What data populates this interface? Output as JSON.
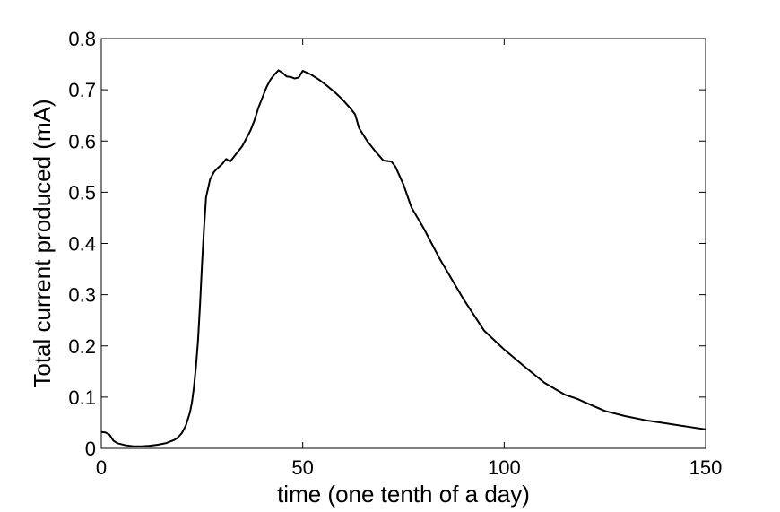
{
  "chart_data": {
    "type": "line",
    "title": "",
    "xlabel": "time (one tenth of a day)",
    "ylabel": "Total current produced (mA)",
    "xlim": [
      0,
      150
    ],
    "ylim": [
      0,
      0.8
    ],
    "x_ticks": [
      {
        "value": 0,
        "label": "0"
      },
      {
        "value": 50,
        "label": "50"
      },
      {
        "value": 100,
        "label": "100"
      },
      {
        "value": 150,
        "label": "150"
      }
    ],
    "y_ticks": [
      {
        "value": 0,
        "label": "0"
      },
      {
        "value": 0.1,
        "label": "0.1"
      },
      {
        "value": 0.2,
        "label": "0.2"
      },
      {
        "value": 0.3,
        "label": "0.3"
      },
      {
        "value": 0.4,
        "label": "0.4"
      },
      {
        "value": 0.5,
        "label": "0.5"
      },
      {
        "value": 0.6,
        "label": "0.6"
      },
      {
        "value": 0.7,
        "label": "0.7"
      },
      {
        "value": 0.8,
        "label": "0.8"
      }
    ],
    "grid": false,
    "legend": "none",
    "line_color": "#000000",
    "series": [
      {
        "x": [
          0,
          1,
          2,
          3,
          4,
          6,
          8,
          10,
          12,
          14,
          16,
          18,
          19,
          20,
          21,
          22,
          22.5,
          23,
          23.5,
          24,
          24.5,
          25,
          25.5,
          26,
          27,
          28,
          29,
          30,
          31,
          32,
          33,
          34,
          35,
          36,
          37,
          38,
          39,
          40,
          41,
          42,
          43,
          44,
          45,
          46,
          47,
          48,
          49,
          50,
          52,
          54,
          56,
          58,
          60,
          62,
          63,
          64,
          66,
          68,
          70,
          72,
          73,
          75,
          77,
          80,
          84,
          90,
          95,
          100,
          105,
          110,
          115,
          118,
          120,
          125,
          130,
          135,
          140,
          145,
          150
        ],
        "y": [
          0.032,
          0.031,
          0.027,
          0.015,
          0.01,
          0.006,
          0.004,
          0.004,
          0.005,
          0.007,
          0.01,
          0.016,
          0.021,
          0.03,
          0.045,
          0.07,
          0.09,
          0.12,
          0.16,
          0.21,
          0.28,
          0.36,
          0.43,
          0.49,
          0.525,
          0.54,
          0.548,
          0.555,
          0.565,
          0.56,
          0.57,
          0.58,
          0.59,
          0.605,
          0.62,
          0.64,
          0.665,
          0.685,
          0.705,
          0.72,
          0.73,
          0.738,
          0.733,
          0.726,
          0.725,
          0.722,
          0.724,
          0.737,
          0.73,
          0.72,
          0.708,
          0.695,
          0.68,
          0.662,
          0.652,
          0.625,
          0.6,
          0.58,
          0.562,
          0.56,
          0.55,
          0.515,
          0.47,
          0.43,
          0.37,
          0.29,
          0.23,
          0.193,
          0.16,
          0.128,
          0.105,
          0.097,
          0.09,
          0.073,
          0.063,
          0.055,
          0.049,
          0.043,
          0.037
        ]
      }
    ]
  }
}
